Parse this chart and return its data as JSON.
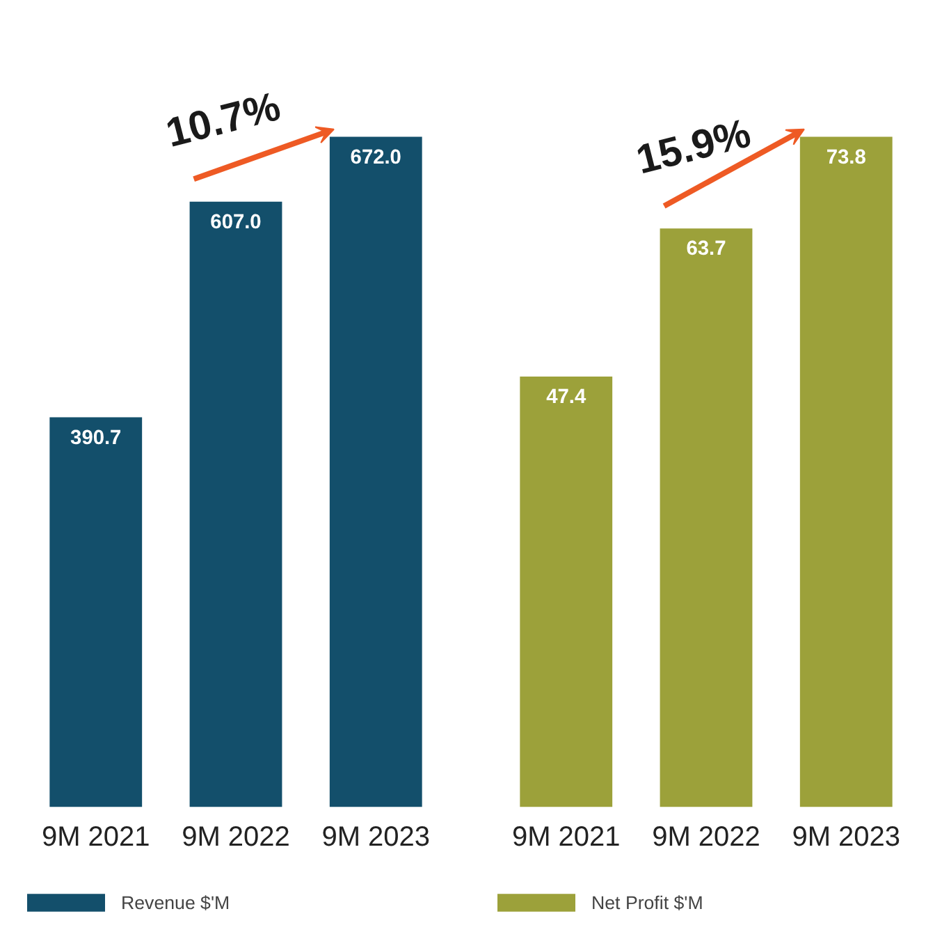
{
  "chart_data": [
    {
      "type": "bar",
      "categories": [
        "9M 2021",
        "9M 2022",
        "9M 2023"
      ],
      "series": [
        {
          "name": "Revenue $'M",
          "color": "#134f6b",
          "values": [
            390.7,
            607.0,
            672.0
          ],
          "value_labels": [
            "390.7",
            "607.0",
            "672.0"
          ]
        }
      ],
      "legend": "bottom",
      "annotations": [
        "10.7%"
      ]
    },
    {
      "type": "bar",
      "categories": [
        "9M 2021",
        "9M 2022",
        "9M 2023"
      ],
      "series": [
        {
          "name": "Net Profit $'M",
          "color": "#9ca13a",
          "values": [
            47.4,
            63.7,
            73.8
          ],
          "value_labels": [
            "47.4",
            "63.7",
            "73.8"
          ]
        }
      ],
      "legend": "bottom",
      "annotations": [
        "15.9%"
      ]
    }
  ]
}
